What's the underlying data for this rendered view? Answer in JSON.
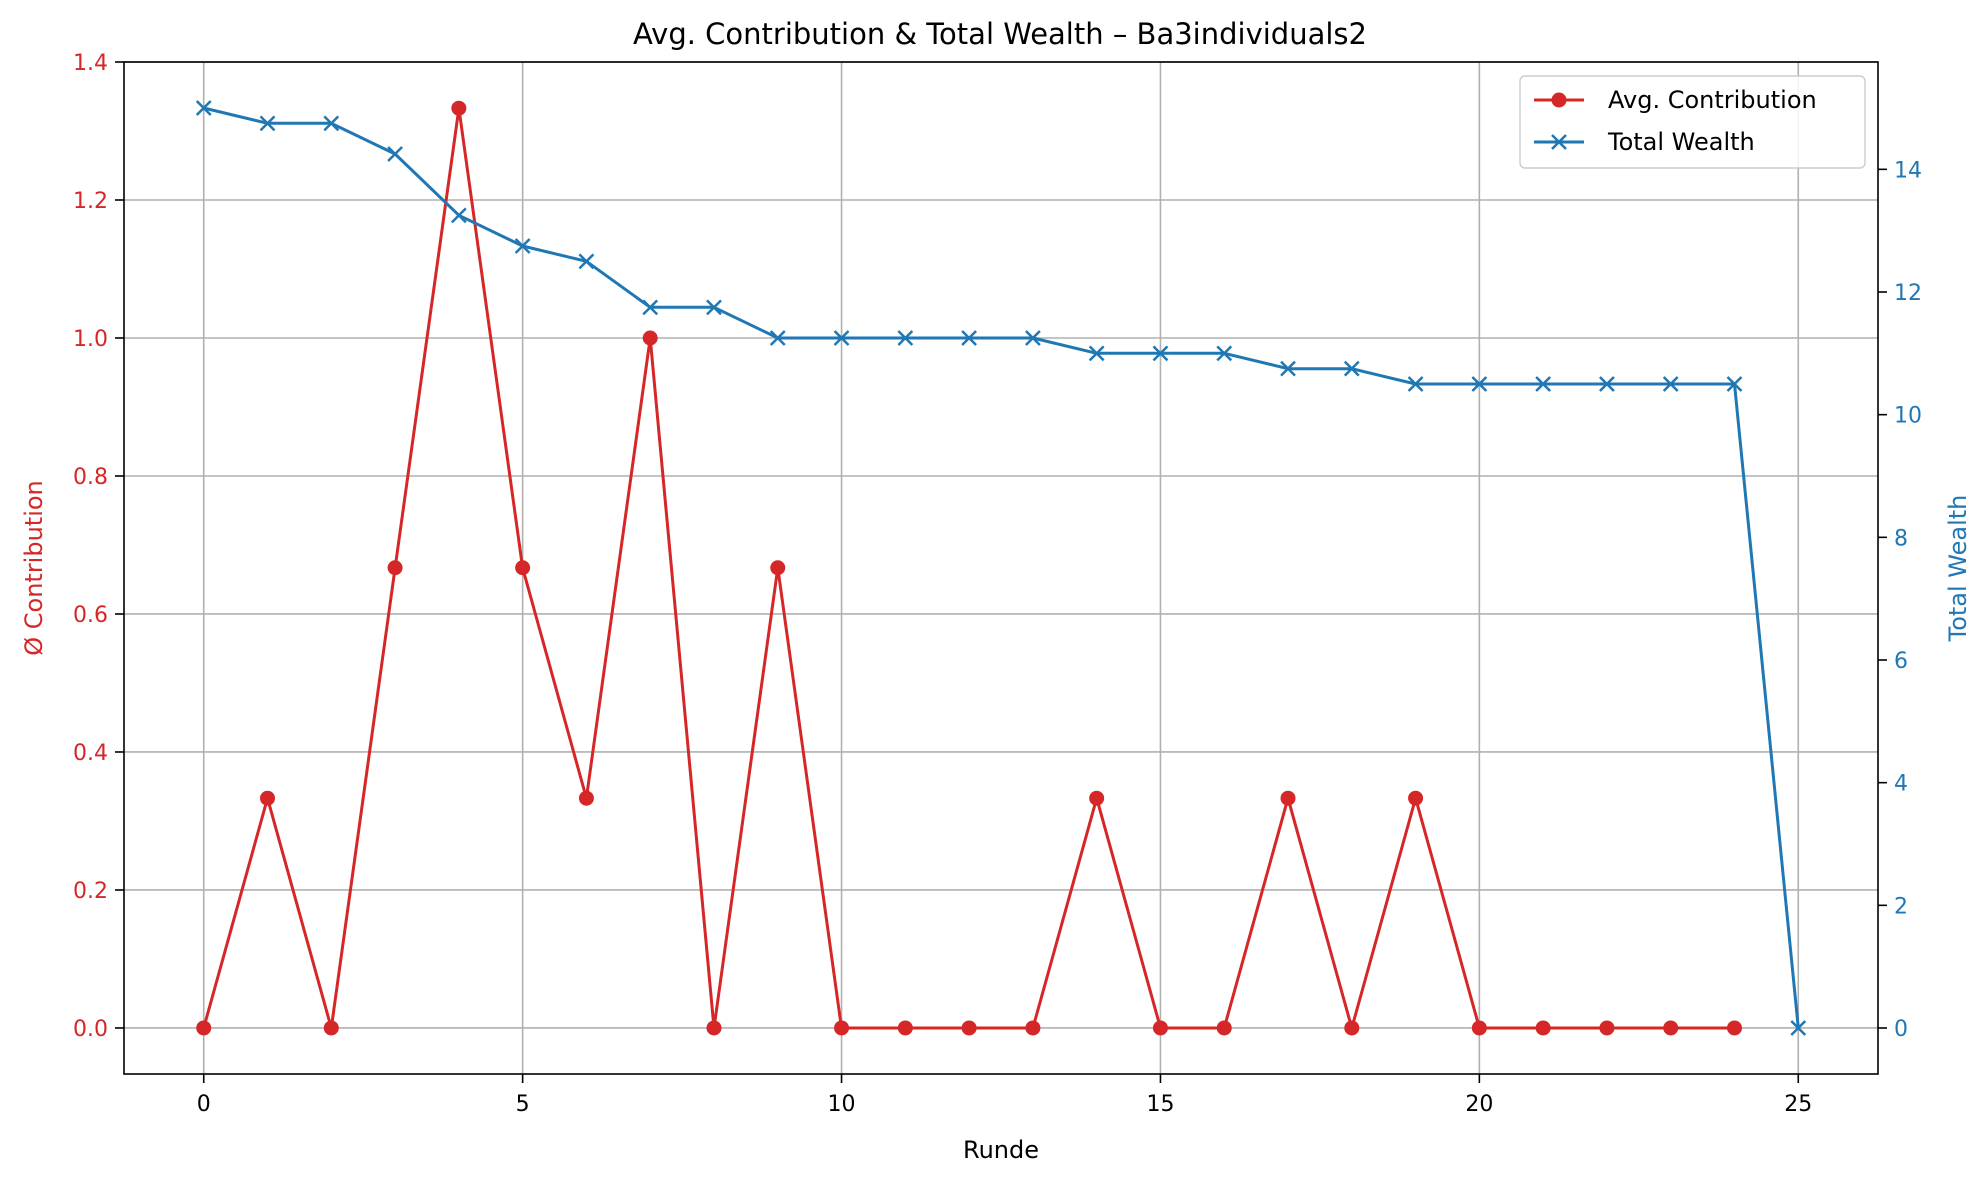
{
  "chart_data": {
    "type": "line",
    "title": "Avg. Contribution & Total Wealth – Ba3individuals2",
    "xlabel": "Runde",
    "ylabel_left": "Ø Contribution",
    "ylabel_right": "Total Wealth",
    "xlim": [
      -1.25,
      26.25
    ],
    "ylim_left": [
      -0.0667,
      1.4
    ],
    "ylim_right": [
      -0.75,
      15.75
    ],
    "x_ticks": [
      0,
      5,
      10,
      15,
      20,
      25
    ],
    "y_ticks_left": [
      "0.0",
      "0.2",
      "0.4",
      "0.6",
      "0.8",
      "1.0",
      "1.2",
      "1.4"
    ],
    "y_ticks_right": [
      0,
      2,
      4,
      6,
      8,
      10,
      12,
      14
    ],
    "grid": true,
    "legend_position": "top-right",
    "series": [
      {
        "name": "Avg. Contribution",
        "axis": "left",
        "color": "#d62728",
        "marker": "circle",
        "x": [
          0,
          1,
          2,
          3,
          4,
          5,
          6,
          7,
          8,
          9,
          10,
          11,
          12,
          13,
          14,
          15,
          16,
          17,
          18,
          19,
          20,
          21,
          22,
          23,
          24
        ],
        "values": [
          0,
          0.333,
          0,
          0.667,
          1.333,
          0.667,
          0.333,
          1.0,
          0,
          0.667,
          0,
          0,
          0,
          0,
          0.333,
          0,
          0,
          0.333,
          0,
          0.333,
          0,
          0,
          0,
          0,
          0
        ]
      },
      {
        "name": "Total Wealth",
        "axis": "right",
        "color": "#1f77b4",
        "marker": "x",
        "x": [
          0,
          1,
          2,
          3,
          4,
          5,
          6,
          7,
          8,
          9,
          10,
          11,
          12,
          13,
          14,
          15,
          16,
          17,
          18,
          19,
          20,
          21,
          22,
          23,
          24,
          25
        ],
        "values": [
          15.0,
          14.75,
          14.75,
          14.25,
          13.25,
          12.75,
          12.5,
          11.75,
          11.75,
          11.25,
          11.25,
          11.25,
          11.25,
          11.25,
          11.0,
          11.0,
          11.0,
          10.75,
          10.75,
          10.5,
          10.5,
          10.5,
          10.5,
          10.5,
          10.5,
          0
        ]
      }
    ]
  }
}
